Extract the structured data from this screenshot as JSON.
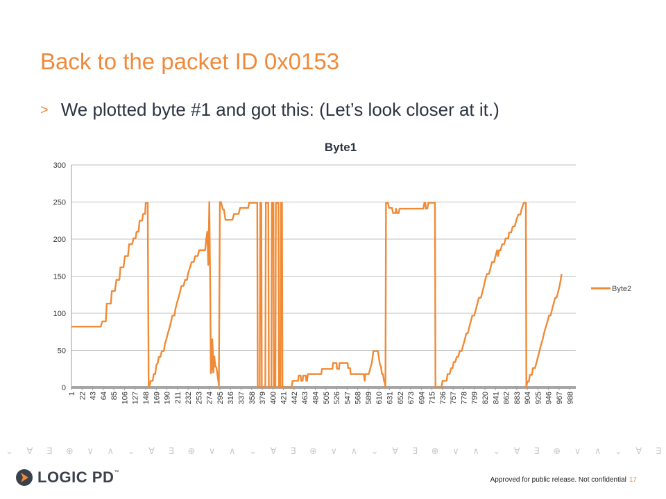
{
  "slide": {
    "title": "Back to the packet ID 0x0153",
    "bullet_marker": ">",
    "bullet_text": "We plotted byte #1 and got this: (Let’s look closer at it.)"
  },
  "footer": {
    "note": "Approved for public release. Not confidential",
    "page_number": "17",
    "logo_text": "LOGIC PD",
    "logo_tm": "™"
  },
  "decor": {
    "pattern_glyphs": "⌄ ∀ ∃ ⊕ ∨ ∧ ⌄ ∀ ∃ ⊕ ∨ ∧ ⌄ ∀ ∃ ⊕ ∨ ∧ ⌄ ∀ ∃ ⊕ ∨ ∧ ⌄ ∀ ∃ ⊕ ∨ ∧ ⌄ ∀ ∃ ⊕ ∨ ∧ ⌄ ∀ ∃ ⊕ ∨ ∧ ⌄ ∀ ∃ ⊕ ∨ ∧"
  },
  "colors": {
    "accent": "#F0893A",
    "series": "#F08A35",
    "text": "#2C3440",
    "grid": "#BFBFBF"
  },
  "chart_data": {
    "type": "line",
    "title": "Byte1",
    "xlabel": "",
    "ylabel": "",
    "ylim": [
      0,
      300
    ],
    "yticks": [
      0,
      50,
      100,
      150,
      200,
      250,
      300
    ],
    "grid": true,
    "legend_position": "right",
    "xlim": [
      1,
      1000
    ],
    "xticks": [
      1,
      22,
      43,
      64,
      85,
      106,
      127,
      148,
      169,
      190,
      211,
      232,
      253,
      274,
      295,
      316,
      337,
      358,
      379,
      400,
      421,
      442,
      463,
      484,
      505,
      526,
      547,
      568,
      589,
      610,
      631,
      652,
      673,
      694,
      715,
      736,
      757,
      778,
      799,
      820,
      841,
      862,
      883,
      904,
      925,
      946,
      967,
      988
    ],
    "series": [
      {
        "name": "Byte2",
        "points": [
          [
            1,
            82
          ],
          [
            59,
            82
          ],
          [
            62,
            89
          ],
          [
            69,
            89
          ],
          [
            71,
            113
          ],
          [
            79,
            113
          ],
          [
            81,
            130
          ],
          [
            87,
            130
          ],
          [
            90,
            145
          ],
          [
            96,
            145
          ],
          [
            98,
            162
          ],
          [
            104,
            162
          ],
          [
            107,
            177
          ],
          [
            113,
            177
          ],
          [
            115,
            193
          ],
          [
            121,
            193
          ],
          [
            124,
            201
          ],
          [
            128,
            201
          ],
          [
            130,
            210
          ],
          [
            134,
            210
          ],
          [
            136,
            225
          ],
          [
            141,
            225
          ],
          [
            143,
            234
          ],
          [
            147,
            234
          ],
          [
            148,
            249
          ],
          [
            152,
            249
          ],
          [
            154,
            0
          ],
          [
            156,
            3
          ],
          [
            158,
            9
          ],
          [
            162,
            9
          ],
          [
            164,
            18
          ],
          [
            167,
            18
          ],
          [
            169,
            30
          ],
          [
            172,
            33
          ],
          [
            174,
            41
          ],
          [
            177,
            41
          ],
          [
            180,
            49
          ],
          [
            184,
            49
          ],
          [
            186,
            58
          ],
          [
            189,
            65
          ],
          [
            192,
            73
          ],
          [
            195,
            80
          ],
          [
            198,
            88
          ],
          [
            201,
            97
          ],
          [
            205,
            97
          ],
          [
            207,
            106
          ],
          [
            210,
            114
          ],
          [
            213,
            121
          ],
          [
            216,
            129
          ],
          [
            219,
            137
          ],
          [
            223,
            137
          ],
          [
            226,
            145
          ],
          [
            230,
            145
          ],
          [
            232,
            154
          ],
          [
            236,
            162
          ],
          [
            239,
            169
          ],
          [
            243,
            169
          ],
          [
            246,
            177
          ],
          [
            251,
            177
          ],
          [
            254,
            185
          ],
          [
            266,
            185
          ],
          [
            268,
            200
          ],
          [
            270,
            210
          ],
          [
            272,
            165
          ],
          [
            274,
            250
          ],
          [
            276,
            130
          ],
          [
            277,
            19
          ],
          [
            279,
            25
          ],
          [
            280,
            65
          ],
          [
            281,
            48
          ],
          [
            282,
            20
          ],
          [
            284,
            42
          ],
          [
            286,
            28
          ],
          [
            288,
            27
          ],
          [
            290,
            18
          ],
          [
            292,
            8
          ],
          [
            293,
            2
          ],
          [
            295,
            250
          ],
          [
            297,
            250
          ],
          [
            301,
            240
          ],
          [
            303,
            240
          ],
          [
            306,
            226
          ],
          [
            320,
            226
          ],
          [
            323,
            234
          ],
          [
            332,
            234
          ],
          [
            335,
            242
          ],
          [
            351,
            242
          ],
          [
            353,
            249
          ],
          [
            369,
            249
          ],
          [
            370,
            0
          ],
          [
            374,
            0
          ],
          [
            375,
            249
          ],
          [
            377,
            249
          ],
          [
            378,
            0
          ],
          [
            385,
            0
          ],
          [
            386,
            249
          ],
          [
            391,
            249
          ],
          [
            392,
            0
          ],
          [
            397,
            0
          ],
          [
            398,
            249
          ],
          [
            401,
            249
          ],
          [
            402,
            0
          ],
          [
            405,
            0
          ],
          [
            406,
            249
          ],
          [
            411,
            249
          ],
          [
            412,
            0
          ],
          [
            415,
            0
          ],
          [
            416,
            249
          ],
          [
            418,
            249
          ],
          [
            419,
            0
          ],
          [
            437,
            0
          ],
          [
            439,
            9
          ],
          [
            450,
            9
          ],
          [
            451,
            16
          ],
          [
            455,
            16
          ],
          [
            456,
            9
          ],
          [
            459,
            9
          ],
          [
            460,
            16
          ],
          [
            465,
            16
          ],
          [
            466,
            9
          ],
          [
            468,
            9
          ],
          [
            469,
            18
          ],
          [
            496,
            18
          ],
          [
            497,
            25
          ],
          [
            518,
            25
          ],
          [
            519,
            33
          ],
          [
            526,
            33
          ],
          [
            527,
            25
          ],
          [
            531,
            25
          ],
          [
            532,
            33
          ],
          [
            548,
            33
          ],
          [
            549,
            26
          ],
          [
            553,
            26
          ],
          [
            554,
            18
          ],
          [
            580,
            18
          ],
          [
            582,
            9
          ],
          [
            583,
            18
          ],
          [
            590,
            18
          ],
          [
            593,
            26
          ],
          [
            596,
            33
          ],
          [
            599,
            49
          ],
          [
            608,
            49
          ],
          [
            610,
            40
          ],
          [
            612,
            31
          ],
          [
            614,
            28
          ],
          [
            616,
            18
          ],
          [
            618,
            18
          ],
          [
            620,
            9
          ],
          [
            622,
            5
          ],
          [
            623,
            0
          ],
          [
            624,
            249
          ],
          [
            628,
            249
          ],
          [
            630,
            242
          ],
          [
            636,
            242
          ],
          [
            638,
            235
          ],
          [
            643,
            235
          ],
          [
            644,
            241
          ],
          [
            646,
            235
          ],
          [
            649,
            235
          ],
          [
            651,
            241
          ],
          [
            698,
            241
          ],
          [
            700,
            249
          ],
          [
            702,
            249
          ],
          [
            703,
            241
          ],
          [
            706,
            241
          ],
          [
            708,
            249
          ],
          [
            721,
            249
          ],
          [
            722,
            0
          ],
          [
            734,
            0
          ],
          [
            736,
            9
          ],
          [
            744,
            9
          ],
          [
            746,
            18
          ],
          [
            750,
            18
          ],
          [
            753,
            26
          ],
          [
            756,
            26
          ],
          [
            758,
            34
          ],
          [
            761,
            34
          ],
          [
            764,
            41
          ],
          [
            767,
            41
          ],
          [
            770,
            49
          ],
          [
            774,
            49
          ],
          [
            777,
            57
          ],
          [
            780,
            64
          ],
          [
            783,
            73
          ],
          [
            786,
            73
          ],
          [
            789,
            81
          ],
          [
            792,
            89
          ],
          [
            795,
            97
          ],
          [
            799,
            97
          ],
          [
            802,
            105
          ],
          [
            805,
            113
          ],
          [
            808,
            121
          ],
          [
            812,
            121
          ],
          [
            815,
            129
          ],
          [
            818,
            137
          ],
          [
            821,
            146
          ],
          [
            824,
            153
          ],
          [
            828,
            153
          ],
          [
            831,
            161
          ],
          [
            834,
            169
          ],
          [
            838,
            169
          ],
          [
            841,
            177
          ],
          [
            844,
            185
          ],
          [
            846,
            177
          ],
          [
            848,
            185
          ],
          [
            851,
            185
          ],
          [
            854,
            193
          ],
          [
            858,
            193
          ],
          [
            861,
            201
          ],
          [
            866,
            201
          ],
          [
            868,
            209
          ],
          [
            872,
            209
          ],
          [
            875,
            217
          ],
          [
            879,
            217
          ],
          [
            882,
            225
          ],
          [
            886,
            233
          ],
          [
            890,
            233
          ],
          [
            893,
            241
          ],
          [
            897,
            249
          ],
          [
            901,
            249
          ],
          [
            902,
            0
          ],
          [
            904,
            8
          ],
          [
            907,
            8
          ],
          [
            909,
            17
          ],
          [
            913,
            17
          ],
          [
            915,
            26
          ],
          [
            919,
            26
          ],
          [
            922,
            33
          ],
          [
            925,
            41
          ],
          [
            928,
            49
          ],
          [
            931,
            57
          ],
          [
            934,
            64
          ],
          [
            937,
            73
          ],
          [
            940,
            80
          ],
          [
            944,
            89
          ],
          [
            947,
            97
          ],
          [
            950,
            97
          ],
          [
            953,
            105
          ],
          [
            956,
            113
          ],
          [
            959,
            121
          ],
          [
            962,
            121
          ],
          [
            965,
            129
          ],
          [
            968,
            137
          ],
          [
            970,
            145
          ],
          [
            972,
            153
          ]
        ]
      }
    ]
  }
}
